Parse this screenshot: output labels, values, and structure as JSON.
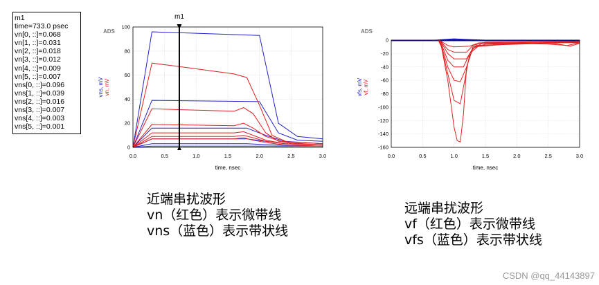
{
  "readout": {
    "lines": [
      "m1",
      "time=733.0 psec",
      "vn[0, ::]=0.068",
      "vn[1, ::]=0.031",
      "vn[2, ::]=0.018",
      "vn[3, ::]=0.012",
      "vn[4, ::]=0.009",
      "vn[5, ::]=0.007",
      "vns[0, ::]=0.096",
      "vns[1, ::]=0.039",
      "vns[2, ::]=0.016",
      "vns[3, ::]=0.007",
      "vns[4, ::]=0.003",
      "vns[5, ::]=0.001"
    ]
  },
  "chart_data": [
    {
      "type": "line",
      "tool_label": "ADS",
      "marker": {
        "label": "m1",
        "x": 0.733
      },
      "xlabel": "time, nsec",
      "ylabel": [
        {
          "text": "vns, mV",
          "color": "#1f1fd0"
        },
        {
          "text": "vn, mV",
          "color": "#e02020"
        }
      ],
      "xlim": [
        0,
        3
      ],
      "ylim": [
        0,
        100
      ],
      "xticks": [
        "0.0",
        "0.5",
        "1.0",
        "1.5",
        "2.0",
        "2.5",
        "3.0"
      ],
      "yticks": [
        "0",
        "20",
        "40",
        "60",
        "80",
        "100"
      ],
      "series": [
        {
          "color": "#1f1fd0",
          "points": [
            [
              0,
              0
            ],
            [
              0.3,
              96
            ],
            [
              2.0,
              93
            ],
            [
              2.3,
              20
            ],
            [
              2.6,
              9
            ],
            [
              3.0,
              7
            ]
          ]
        },
        {
          "color": "#1f1fd0",
          "points": [
            [
              0,
              0
            ],
            [
              0.3,
              39
            ],
            [
              2.0,
              38
            ],
            [
              2.3,
              12
            ],
            [
              2.6,
              6
            ],
            [
              3.0,
              5
            ]
          ]
        },
        {
          "color": "#1f1fd0",
          "points": [
            [
              0,
              0
            ],
            [
              0.3,
              16
            ],
            [
              1.8,
              16
            ],
            [
              2.1,
              10
            ],
            [
              2.4,
              5
            ],
            [
              3.0,
              3
            ]
          ]
        },
        {
          "color": "#1f1fd0",
          "points": [
            [
              0,
              0
            ],
            [
              0.3,
              7
            ],
            [
              1.8,
              7
            ],
            [
              2.1,
              5
            ],
            [
              2.4,
              3
            ],
            [
              3.0,
              2
            ]
          ]
        },
        {
          "color": "#1f1fd0",
          "points": [
            [
              0,
              0
            ],
            [
              0.3,
              3
            ],
            [
              1.8,
              3
            ],
            [
              2.2,
              2
            ],
            [
              3.0,
              1
            ]
          ]
        },
        {
          "color": "#1f1fd0",
          "points": [
            [
              0,
              0
            ],
            [
              0.3,
              1
            ],
            [
              3.0,
              1
            ]
          ]
        },
        {
          "color": "#e02020",
          "points": [
            [
              0,
              0
            ],
            [
              0.3,
              70
            ],
            [
              0.9,
              66
            ],
            [
              1.6,
              61
            ],
            [
              1.8,
              58
            ],
            [
              2.0,
              35
            ],
            [
              2.2,
              10
            ],
            [
              2.5,
              3
            ],
            [
              3.0,
              2
            ]
          ]
        },
        {
          "color": "#e02020",
          "points": [
            [
              0,
              0
            ],
            [
              0.3,
              32
            ],
            [
              1.6,
              30
            ],
            [
              1.75,
              33
            ],
            [
              1.9,
              28
            ],
            [
              2.1,
              12
            ],
            [
              2.3,
              5
            ],
            [
              3.0,
              3
            ]
          ]
        },
        {
          "color": "#e02020",
          "points": [
            [
              0,
              0
            ],
            [
              0.3,
              19
            ],
            [
              1.6,
              18
            ],
            [
              1.75,
              20
            ],
            [
              1.9,
              16
            ],
            [
              2.1,
              9
            ],
            [
              2.4,
              4
            ],
            [
              3.0,
              2
            ]
          ]
        },
        {
          "color": "#e02020",
          "points": [
            [
              0,
              0
            ],
            [
              0.3,
              12
            ],
            [
              1.6,
              12
            ],
            [
              1.75,
              13
            ],
            [
              1.9,
              10
            ],
            [
              2.1,
              6
            ],
            [
              2.4,
              3
            ],
            [
              3.0,
              2
            ]
          ]
        },
        {
          "color": "#e02020",
          "points": [
            [
              0,
              0
            ],
            [
              0.3,
              9
            ],
            [
              1.6,
              9
            ],
            [
              1.75,
              10
            ],
            [
              1.9,
              8
            ],
            [
              2.1,
              5
            ],
            [
              2.4,
              3
            ],
            [
              3.0,
              2
            ]
          ]
        },
        {
          "color": "#e02020",
          "points": [
            [
              0,
              0
            ],
            [
              0.3,
              7
            ],
            [
              1.6,
              7
            ],
            [
              1.75,
              8
            ],
            [
              1.9,
              6
            ],
            [
              2.1,
              4
            ],
            [
              2.4,
              2
            ],
            [
              3.0,
              1
            ]
          ]
        }
      ]
    },
    {
      "type": "line",
      "tool_label": "ADS",
      "xlabel": "time, nsec",
      "ylabel": [
        {
          "text": "vfs, mV",
          "color": "#1f1fd0"
        },
        {
          "text": "vf, mV",
          "color": "#e02020"
        }
      ],
      "xlim": [
        0,
        3
      ],
      "ylim": [
        -160,
        0
      ],
      "xticks": [
        "0.0",
        "0.5",
        "1.0",
        "1.5",
        "2.0",
        "2.5",
        "3.0"
      ],
      "yticks": [
        "0",
        "-20",
        "-40",
        "-60",
        "-80",
        "-100",
        "-120",
        "-140",
        "-160"
      ],
      "series": [
        {
          "color": "#1f1fd0",
          "points": [
            [
              0,
              0
            ],
            [
              0.7,
              0
            ],
            [
              0.85,
              1
            ],
            [
              1.0,
              2
            ],
            [
              1.2,
              1
            ],
            [
              1.5,
              0
            ],
            [
              3.0,
              0
            ]
          ]
        },
        {
          "color": "#1f1fd0",
          "points": [
            [
              0,
              0
            ],
            [
              0.8,
              0
            ],
            [
              1.0,
              1
            ],
            [
              1.3,
              0
            ],
            [
              3.0,
              0
            ]
          ]
        },
        {
          "color": "#1f1fd0",
          "points": [
            [
              0,
              0
            ],
            [
              3.0,
              0
            ]
          ]
        },
        {
          "color": "#1f1fd0",
          "points": [
            [
              0,
              -1
            ],
            [
              0.8,
              -1
            ],
            [
              1.2,
              -1
            ],
            [
              3.0,
              -1
            ]
          ]
        },
        {
          "color": "#e02020",
          "points": [
            [
              0,
              0
            ],
            [
              0.75,
              0
            ],
            [
              0.8,
              -10
            ],
            [
              0.9,
              -60
            ],
            [
              1.0,
              -130
            ],
            [
              1.05,
              -150
            ],
            [
              1.1,
              -152
            ],
            [
              1.15,
              -110
            ],
            [
              1.2,
              -40
            ],
            [
              1.3,
              -10
            ],
            [
              2.0,
              -5
            ],
            [
              2.5,
              -6
            ],
            [
              2.8,
              -8
            ],
            [
              3.0,
              -4
            ]
          ]
        },
        {
          "color": "#e02020",
          "points": [
            [
              0,
              0
            ],
            [
              0.75,
              0
            ],
            [
              0.8,
              -10
            ],
            [
              0.9,
              -50
            ],
            [
              1.0,
              -90
            ],
            [
              1.1,
              -95
            ],
            [
              1.15,
              -70
            ],
            [
              1.25,
              -20
            ],
            [
              1.4,
              -8
            ],
            [
              2.2,
              -4
            ],
            [
              2.6,
              -5
            ],
            [
              2.85,
              -9
            ],
            [
              3.0,
              -5
            ]
          ]
        },
        {
          "color": "#e02020",
          "points": [
            [
              0,
              0
            ],
            [
              0.75,
              0
            ],
            [
              0.8,
              -8
            ],
            [
              0.9,
              -40
            ],
            [
              1.0,
              -60
            ],
            [
              1.1,
              -62
            ],
            [
              1.2,
              -40
            ],
            [
              1.3,
              -12
            ],
            [
              1.5,
              -6
            ],
            [
              2.5,
              -4
            ],
            [
              3.0,
              -4
            ]
          ]
        },
        {
          "color": "#e02020",
          "points": [
            [
              0,
              0
            ],
            [
              0.75,
              0
            ],
            [
              0.8,
              -6
            ],
            [
              0.9,
              -30
            ],
            [
              1.0,
              -40
            ],
            [
              1.15,
              -40
            ],
            [
              1.25,
              -20
            ],
            [
              1.35,
              -8
            ],
            [
              3.0,
              -3
            ]
          ]
        },
        {
          "color": "#e02020",
          "points": [
            [
              0,
              0
            ],
            [
              0.75,
              0
            ],
            [
              0.8,
              -4
            ],
            [
              0.9,
              -20
            ],
            [
              1.0,
              -28
            ],
            [
              1.2,
              -28
            ],
            [
              1.3,
              -12
            ],
            [
              1.45,
              -5
            ],
            [
              3.0,
              -3
            ]
          ]
        },
        {
          "color": "#e02020",
          "points": [
            [
              0,
              0
            ],
            [
              0.75,
              0
            ],
            [
              0.8,
              -3
            ],
            [
              0.9,
              -14
            ],
            [
              1.0,
              -18
            ],
            [
              1.2,
              -18
            ],
            [
              1.3,
              -8
            ],
            [
              1.5,
              -3
            ],
            [
              3.0,
              -2
            ]
          ]
        },
        {
          "color": "#e02020",
          "points": [
            [
              0,
              0
            ],
            [
              0.75,
              0
            ],
            [
              0.8,
              -2
            ],
            [
              0.9,
              -8
            ],
            [
              1.0,
              -10
            ],
            [
              1.25,
              -9
            ],
            [
              1.4,
              -4
            ],
            [
              3.0,
              -2
            ]
          ]
        }
      ]
    }
  ],
  "captions": {
    "near": {
      "line1": "近端串扰波形",
      "line2": "vn（红色）表示微带线",
      "line3": "vns（蓝色）表示带状线"
    },
    "far": {
      "line1": "远端串扰波形",
      "line2": "vf（红色）表示微带线",
      "line3": "vfs（蓝色）表示带状线"
    }
  },
  "watermark": "CSDN @qq_44143897"
}
